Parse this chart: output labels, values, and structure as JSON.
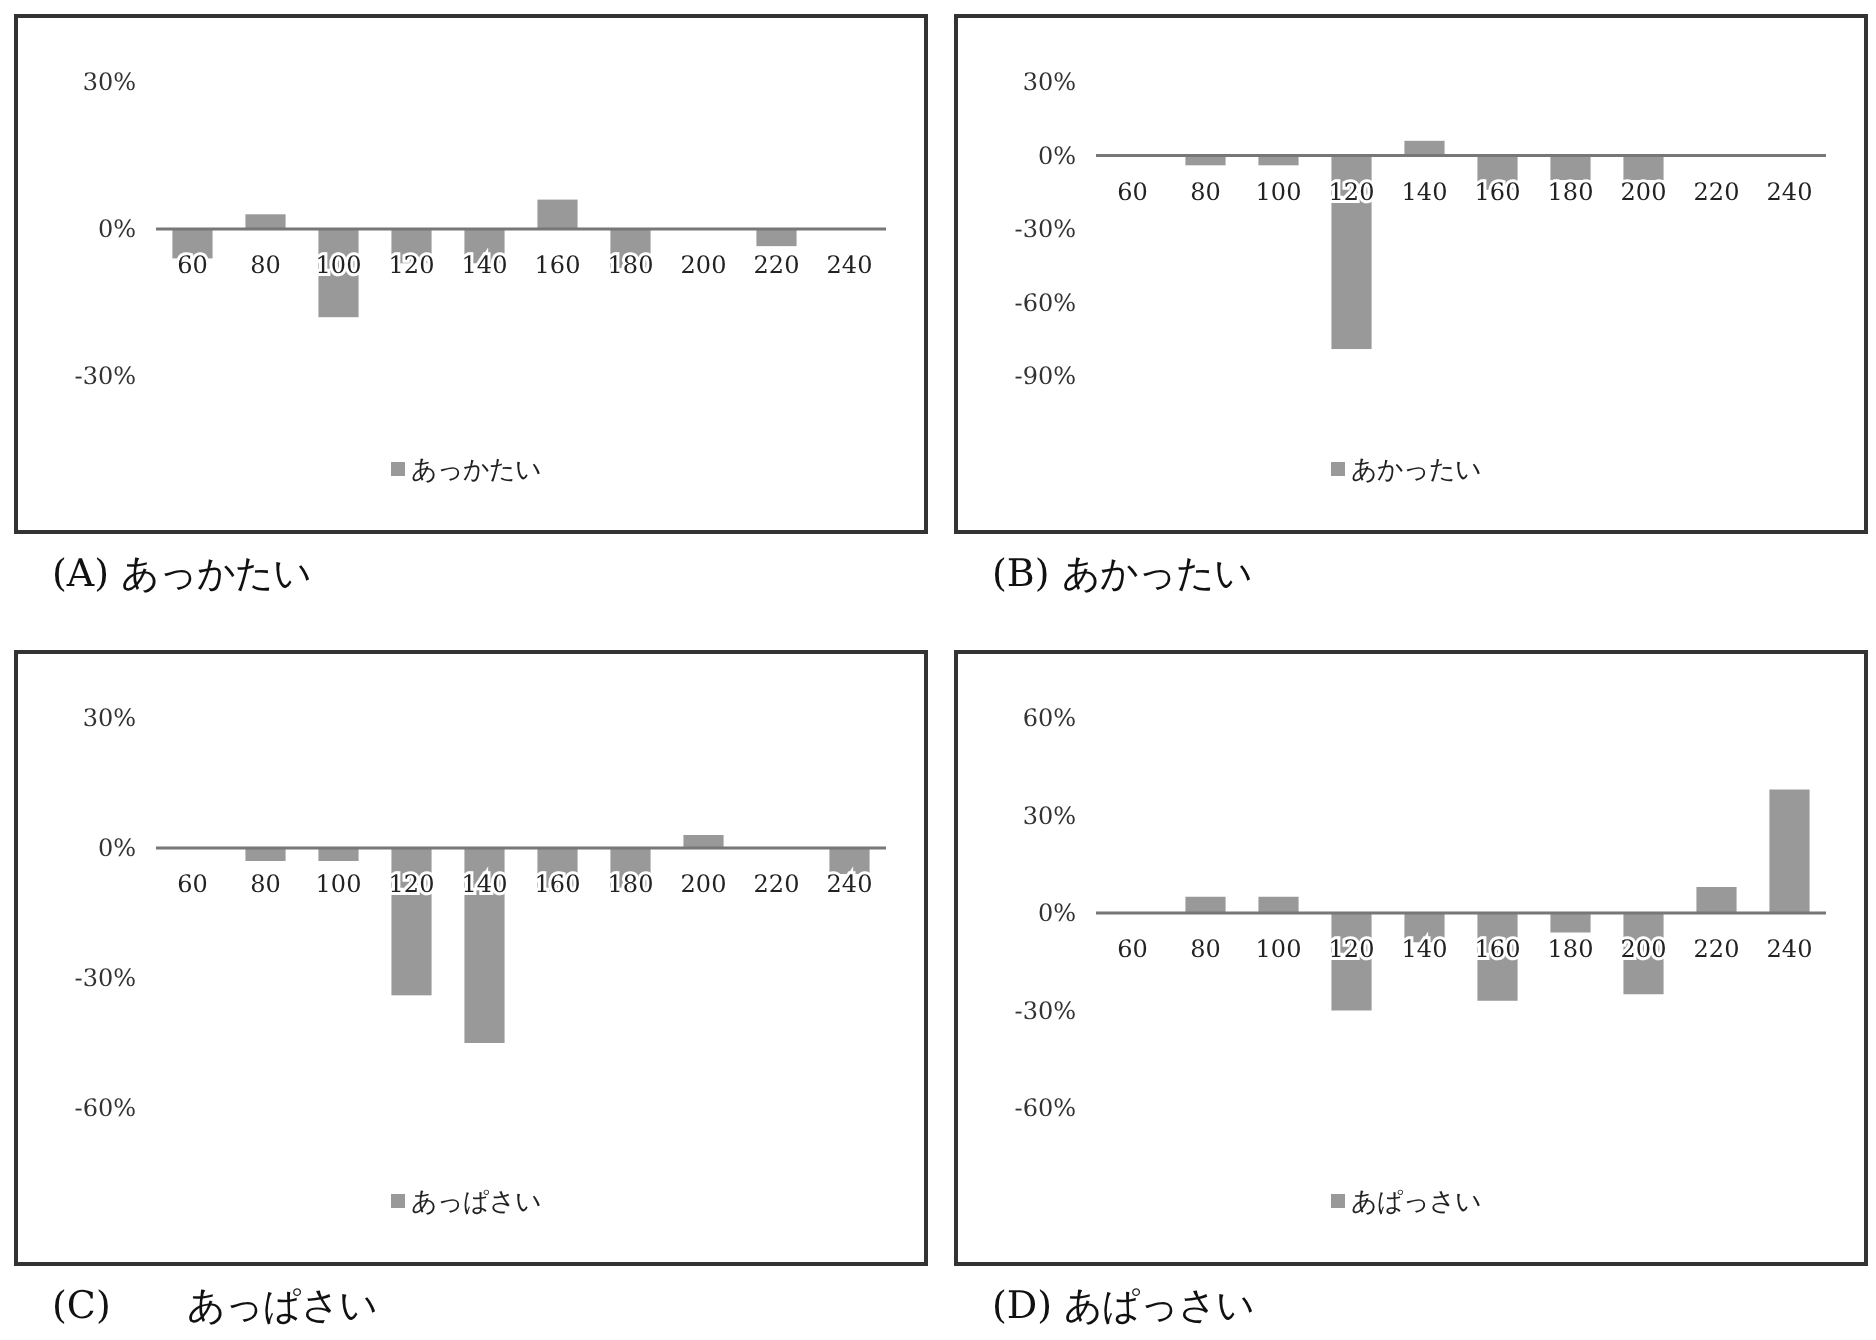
{
  "chart_data": [
    {
      "type": "bar",
      "categories": [
        "60",
        "80",
        "100",
        "120",
        "140",
        "160",
        "180",
        "200",
        "220",
        "240"
      ],
      "series": [
        {
          "name": "あっかたい",
          "color": "#999999",
          "values": [
            -6,
            3,
            -18,
            -7,
            -7,
            6,
            -8,
            0,
            -3.5,
            0
          ]
        }
      ],
      "ylim": [
        -30,
        30
      ],
      "yticks": [
        {
          "value": -30,
          "label": "-30%"
        },
        {
          "value": 0,
          "label": "0%"
        },
        {
          "value": 30,
          "label": "30%"
        }
      ],
      "legend": "bottom",
      "annotations": [
        "(A) あっかたい"
      ]
    },
    {
      "type": "bar",
      "categories": [
        "60",
        "80",
        "100",
        "120",
        "140",
        "160",
        "180",
        "200",
        "220",
        "240"
      ],
      "series": [
        {
          "name": "あかったい",
          "color": "#999999",
          "values": [
            0,
            -4,
            -4,
            -79,
            6,
            -14,
            -10,
            -10,
            0,
            0
          ]
        }
      ],
      "ylim": [
        -90,
        30
      ],
      "yticks": [
        {
          "value": -90,
          "label": "-90%"
        },
        {
          "value": -60,
          "label": "-60%"
        },
        {
          "value": -30,
          "label": "-30%"
        },
        {
          "value": 0,
          "label": "0%"
        },
        {
          "value": 30,
          "label": "30%"
        }
      ],
      "legend": "bottom",
      "annotations": [
        "(B) あかったい"
      ]
    },
    {
      "type": "bar",
      "categories": [
        "60",
        "80",
        "100",
        "120",
        "140",
        "160",
        "180",
        "200",
        "220",
        "240"
      ],
      "series": [
        {
          "name": "あっぱさい",
          "color": "#999999",
          "values": [
            0,
            -3,
            -3,
            -34,
            -45,
            -10,
            -10,
            3,
            0,
            -6
          ]
        }
      ],
      "ylim": [
        -60,
        30
      ],
      "yticks": [
        {
          "value": -60,
          "label": "-60%"
        },
        {
          "value": -30,
          "label": "-30%"
        },
        {
          "value": 0,
          "label": "0%"
        },
        {
          "value": 30,
          "label": "30%"
        }
      ],
      "legend": "bottom",
      "annotations": [
        "(C)　　あっぱさい"
      ]
    },
    {
      "type": "bar",
      "categories": [
        "60",
        "80",
        "100",
        "120",
        "140",
        "160",
        "180",
        "200",
        "220",
        "240"
      ],
      "series": [
        {
          "name": "あぱっさい",
          "color": "#999999",
          "values": [
            0,
            5,
            5,
            -30,
            -9,
            -27,
            -6,
            -25,
            8,
            38
          ]
        }
      ],
      "ylim": [
        -60,
        60
      ],
      "yticks": [
        {
          "value": -60,
          "label": "-60%"
        },
        {
          "value": -30,
          "label": "-30%"
        },
        {
          "value": 0,
          "label": "0%"
        },
        {
          "value": 30,
          "label": "30%"
        },
        {
          "value": 60,
          "label": "60%"
        }
      ],
      "legend": "bottom",
      "annotations": [
        "(D) あぱっさい"
      ]
    }
  ]
}
